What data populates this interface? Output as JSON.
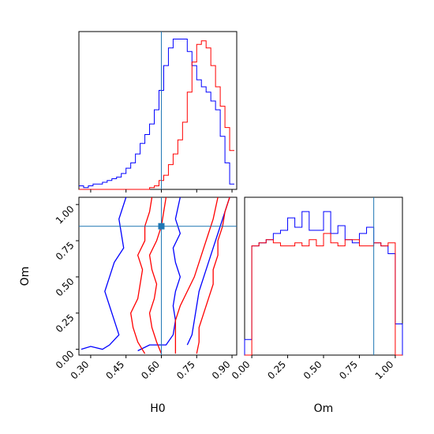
{
  "chart_data": {
    "type": "corner",
    "parameters": [
      "H0",
      "Om"
    ],
    "truth": {
      "H0": 0.6,
      "Om": 0.85
    },
    "colors": {
      "blue_sample": "#0000ff",
      "red_sample": "#ff0000",
      "truth_line": "#1f77b4"
    },
    "panels": [
      {
        "type": "histogram",
        "parameter": "H0",
        "xlim": [
          0.25,
          0.92
        ],
        "bin_edges": [
          0.25,
          0.27,
          0.29,
          0.31,
          0.33,
          0.35,
          0.37,
          0.39,
          0.41,
          0.43,
          0.45,
          0.47,
          0.49,
          0.51,
          0.53,
          0.55,
          0.57,
          0.59,
          0.61,
          0.63,
          0.65,
          0.67,
          0.69,
          0.71,
          0.73,
          0.75,
          0.77,
          0.79,
          0.81,
          0.83,
          0.85,
          0.87,
          0.89,
          0.91
        ],
        "series": [
          {
            "name": "",
            "color": "#0000ff",
            "counts": [
              2,
              1,
              2,
              3,
              3,
              4,
              5,
              6,
              7,
              9,
              12,
              15,
              20,
              26,
              31,
              37,
              45,
              56,
              70,
              80,
              85,
              85,
              85,
              78,
              70,
              62,
              58,
              55,
              50,
              45,
              30,
              15,
              3
            ]
          },
          {
            "name": "",
            "color": "#ff0000",
            "counts": [
              0,
              0,
              0,
              0,
              0,
              0,
              0,
              0,
              0,
              0,
              0,
              0,
              0,
              0,
              0,
              1,
              2,
              5,
              8,
              14,
              20,
              28,
              38,
              55,
              72,
              82,
              84,
              80,
              70,
              58,
              47,
              35,
              22
            ]
          }
        ],
        "xticks": [
          0.3,
          0.45,
          0.6,
          0.75,
          0.9
        ]
      },
      {
        "type": "contour",
        "x_parameter": "H0",
        "y_parameter": "Om",
        "xlim": [
          0.25,
          0.92
        ],
        "ylim": [
          -0.04,
          1.05
        ],
        "xticks": [
          "0.30",
          "0.45",
          "0.60",
          "0.75",
          "0.90"
        ],
        "yticks": [
          "0.00",
          "0.25",
          "0.50",
          "0.75",
          "1.00"
        ],
        "xlabel": "H0",
        "ylabel": "Om",
        "series": [
          {
            "name": "",
            "color": "#0000ff",
            "contours": [
              [
                [
                  0.26,
                  0.0
                ],
                [
                  0.3,
                  0.02
                ],
                [
                  0.35,
                  0.0
                ],
                [
                  0.38,
                  0.03
                ],
                [
                  0.42,
                  0.1
                ],
                [
                  0.4,
                  0.2
                ],
                [
                  0.38,
                  0.3
                ],
                [
                  0.36,
                  0.4
                ],
                [
                  0.38,
                  0.5
                ],
                [
                  0.4,
                  0.6
                ],
                [
                  0.44,
                  0.7
                ],
                [
                  0.43,
                  0.8
                ],
                [
                  0.42,
                  0.9
                ],
                [
                  0.45,
                  1.05
                ]
              ],
              [
                [
                  0.5,
                  -0.01
                ],
                [
                  0.55,
                  0.03
                ],
                [
                  0.62,
                  0.03
                ],
                [
                  0.65,
                  0.1
                ],
                [
                  0.66,
                  0.2
                ],
                [
                  0.65,
                  0.3
                ],
                [
                  0.66,
                  0.4
                ],
                [
                  0.68,
                  0.5
                ],
                [
                  0.66,
                  0.6
                ],
                [
                  0.65,
                  0.7
                ],
                [
                  0.68,
                  0.8
                ],
                [
                  0.66,
                  0.9
                ],
                [
                  0.68,
                  1.05
                ]
              ],
              [
                [
                  0.71,
                  0.03
                ],
                [
                  0.73,
                  0.1
                ],
                [
                  0.74,
                  0.2
                ],
                [
                  0.75,
                  0.3
                ],
                [
                  0.76,
                  0.4
                ],
                [
                  0.78,
                  0.5
                ],
                [
                  0.8,
                  0.6
                ],
                [
                  0.82,
                  0.7
                ],
                [
                  0.84,
                  0.8
                ],
                [
                  0.86,
                  0.9
                ],
                [
                  0.88,
                  1.0
                ],
                [
                  0.89,
                  1.05
                ]
              ]
            ]
          },
          {
            "name": "",
            "color": "#ff0000",
            "contours": [
              [
                [
                  0.56,
                  1.05
                ],
                [
                  0.55,
                  0.95
                ],
                [
                  0.53,
                  0.85
                ],
                [
                  0.53,
                  0.75
                ],
                [
                  0.5,
                  0.65
                ],
                [
                  0.52,
                  0.55
                ],
                [
                  0.51,
                  0.45
                ],
                [
                  0.5,
                  0.35
                ],
                [
                  0.47,
                  0.25
                ],
                [
                  0.48,
                  0.15
                ],
                [
                  0.5,
                  0.05
                ],
                [
                  0.53,
                  -0.03
                ]
              ],
              [
                [
                  0.62,
                  1.05
                ],
                [
                  0.61,
                  0.95
                ],
                [
                  0.6,
                  0.85
                ],
                [
                  0.58,
                  0.75
                ],
                [
                  0.55,
                  0.65
                ],
                [
                  0.56,
                  0.55
                ],
                [
                  0.58,
                  0.45
                ],
                [
                  0.57,
                  0.35
                ],
                [
                  0.55,
                  0.25
                ],
                [
                  0.56,
                  0.15
                ],
                [
                  0.58,
                  0.05
                ],
                [
                  0.6,
                  -0.03
                ]
              ],
              [
                [
                  0.84,
                  1.05
                ],
                [
                  0.82,
                  0.9
                ],
                [
                  0.8,
                  0.8
                ],
                [
                  0.78,
                  0.7
                ],
                [
                  0.76,
                  0.6
                ],
                [
                  0.74,
                  0.5
                ],
                [
                  0.71,
                  0.4
                ],
                [
                  0.68,
                  0.3
                ],
                [
                  0.66,
                  0.2
                ],
                [
                  0.66,
                  0.1
                ],
                [
                  0.66,
                  -0.03
                ]
              ],
              [
                [
                  0.89,
                  1.05
                ],
                [
                  0.87,
                  0.95
                ],
                [
                  0.86,
                  0.85
                ],
                [
                  0.84,
                  0.75
                ],
                [
                  0.84,
                  0.65
                ],
                [
                  0.82,
                  0.55
                ],
                [
                  0.82,
                  0.45
                ],
                [
                  0.8,
                  0.35
                ],
                [
                  0.78,
                  0.25
                ],
                [
                  0.76,
                  0.15
                ],
                [
                  0.76,
                  0.05
                ],
                [
                  0.75,
                  -0.03
                ]
              ]
            ]
          }
        ]
      },
      {
        "type": "histogram",
        "parameter": "Om",
        "xlim": [
          -0.05,
          1.05
        ],
        "bin_edges": [
          -0.05,
          0.0,
          0.05,
          0.1,
          0.15,
          0.2,
          0.25,
          0.3,
          0.35,
          0.4,
          0.45,
          0.5,
          0.55,
          0.6,
          0.65,
          0.7,
          0.75,
          0.8,
          0.85,
          0.9,
          0.95,
          1.0,
          1.05
        ],
        "xticks": [
          "0.00",
          "0.25",
          "0.50",
          "0.75",
          "1.00"
        ],
        "xlabel": "Om",
        "series": [
          {
            "name": "",
            "color": "#0000ff",
            "counts": [
              10,
              70,
              72,
              74,
              78,
              80,
              88,
              82,
              92,
              80,
              80,
              92,
              78,
              83,
              74,
              72,
              78,
              82,
              72,
              70,
              65,
              20
            ]
          },
          {
            "name": "",
            "color": "#ff0000",
            "counts": [
              0,
              70,
              72,
              74,
              72,
              70,
              70,
              72,
              70,
              74,
              70,
              78,
              72,
              70,
              74,
              74,
              70,
              70,
              72,
              70,
              72,
              0
            ]
          }
        ]
      }
    ]
  }
}
